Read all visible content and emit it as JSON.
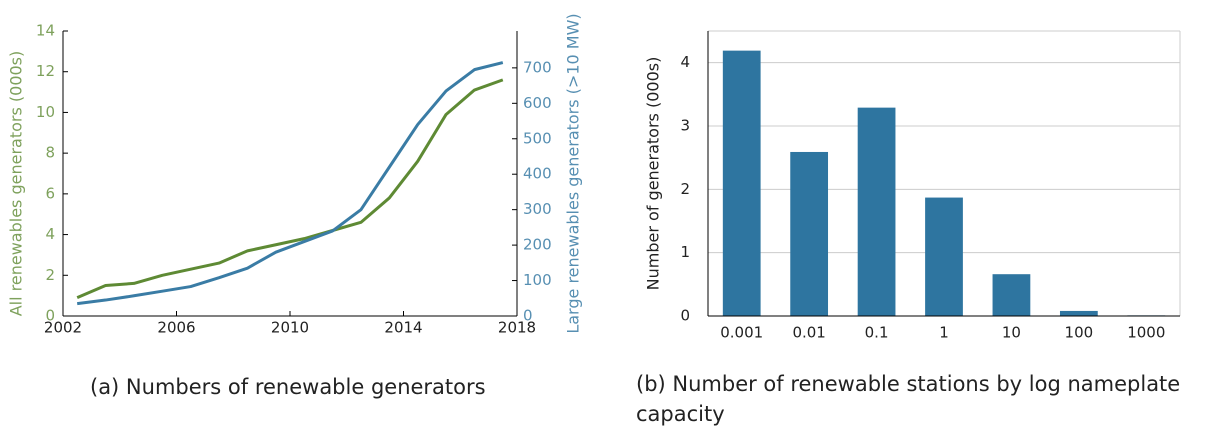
{
  "chart_data": [
    {
      "type": "line",
      "caption": "(a) Numbers of renewable generators",
      "ylabel": "All renewables generators (000s)",
      "y2label": "Large renewables generators (>10 MW)",
      "x": [
        2002.5,
        2003.5,
        2004.5,
        2005.5,
        2006.5,
        2007.5,
        2008.5,
        2009.5,
        2010.5,
        2011.5,
        2012.5,
        2013.5,
        2014.5,
        2015.5,
        2016.5,
        2017.5
      ],
      "xlim": [
        2002,
        2018
      ],
      "xticks": [
        2002,
        2006,
        2010,
        2014,
        2018
      ],
      "ylim": [
        0,
        14
      ],
      "yticks": [
        0,
        2,
        4,
        6,
        8,
        10,
        12,
        14
      ],
      "y2lim": [
        0,
        804
      ],
      "y2ticks": [
        0,
        100,
        200,
        300,
        400,
        500,
        600,
        700
      ],
      "series": [
        {
          "name": "All renewables generators",
          "color": "#5e8a34",
          "values": [
            0.9,
            1.5,
            1.6,
            2.0,
            2.3,
            2.6,
            3.2,
            3.5,
            3.8,
            4.2,
            4.6,
            5.8,
            7.6,
            9.9,
            11.1,
            11.6
          ]
        },
        {
          "name": "Large renewables generators",
          "color": "#3a7ca5",
          "axis": "y2",
          "values": [
            35,
            45,
            57,
            70,
            83,
            108,
            135,
            180,
            210,
            240,
            300,
            420,
            540,
            635,
            695,
            715
          ]
        }
      ]
    },
    {
      "type": "bar",
      "caption": "(b) Number of renewable stations by log nameplate capacity",
      "ylabel": "Number of generators (000s)",
      "categories": [
        "0.001",
        "0.01",
        "0.1",
        "1",
        "10",
        "100",
        "1000"
      ],
      "values": [
        4.19,
        2.59,
        3.29,
        1.87,
        0.66,
        0.08,
        0.01
      ],
      "color": "#2e75a0",
      "ylim": [
        0,
        4.5
      ],
      "yticks": [
        0,
        1,
        2,
        3,
        4
      ],
      "grid": true
    }
  ]
}
